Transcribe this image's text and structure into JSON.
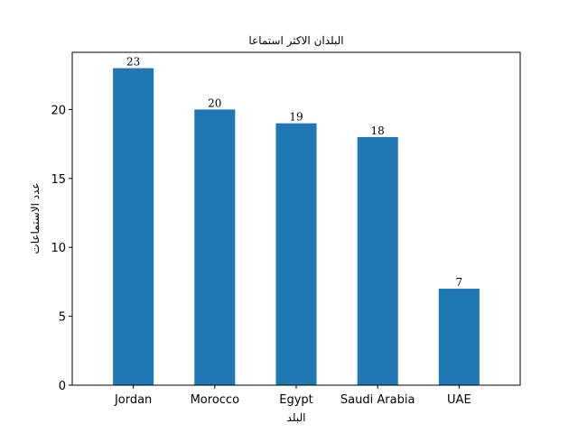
{
  "chart_data": {
    "type": "bar",
    "title": "البلدان الاكثر استماعا",
    "xlabel": "البلد",
    "ylabel": "عدد الاستماعات",
    "categories": [
      "Jordan",
      "Morocco",
      "Egypt",
      "Saudi Arabia",
      "UAE"
    ],
    "values": [
      23,
      20,
      19,
      18,
      7
    ],
    "ylim": [
      0,
      24.15
    ],
    "yticks": [
      0,
      5,
      10,
      15,
      20
    ],
    "bar_color": "#1f77b4",
    "grid": false,
    "legend": "none"
  }
}
